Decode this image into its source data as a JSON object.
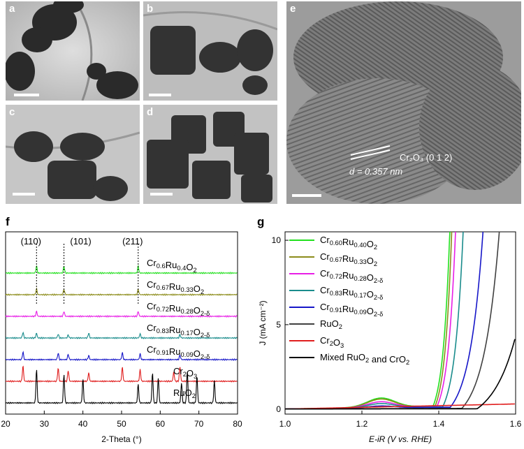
{
  "panels": {
    "a": {
      "label": "a"
    },
    "b": {
      "label": "b"
    },
    "c": {
      "label": "c"
    },
    "d": {
      "label": "d"
    },
    "e": {
      "label": "e"
    },
    "f": {
      "label": "f"
    },
    "g": {
      "label": "g"
    }
  },
  "hrtem": {
    "plane": "Cr₂O₃ (0 1 2)",
    "spacing": "d = 0.357 nm"
  },
  "colors": {
    "green": "#22e01e",
    "olive": "#8c8c1a",
    "magenta": "#e81ee6",
    "teal": "#1a8c8c",
    "blue": "#1616c8",
    "gray": "#404040",
    "red": "#e01e1e",
    "black": "#000000"
  },
  "chart_data": [
    {
      "type": "line",
      "panel": "f",
      "xlabel": "2-Theta (°)",
      "ylabel": "",
      "xlim": [
        20,
        80
      ],
      "xticks": [
        "20",
        "30",
        "40",
        "50",
        "60",
        "70",
        "80"
      ],
      "peak_labels": [
        "(110)",
        "(101)",
        "(211)"
      ],
      "peak_positions": [
        28.0,
        35.1,
        54.3
      ],
      "series": [
        {
          "name": "Cr0.6Ru0.4O2",
          "sub": "0.6",
          "sub2": "0.4",
          "sub3": "2",
          "color": "#22e01e",
          "peaks": [
            28.0,
            35.1,
            54.3
          ],
          "offset": 7
        },
        {
          "name": "Cr0.67Ru0.33O2",
          "color": "#8c8c1a",
          "peaks": [
            28.0,
            35.1,
            54.3
          ],
          "offset": 6
        },
        {
          "name": "Cr0.72Ru0.28O2-δ",
          "color": "#e81ee6",
          "peaks": [
            28.0,
            35.1,
            54.3
          ],
          "offset": 5
        },
        {
          "name": "Cr0.83Ru0.17O2-δ",
          "color": "#1a8c8c",
          "peaks": [
            24.5,
            28.0,
            33.6,
            36.2,
            41.5,
            54.8,
            65.1
          ],
          "offset": 4
        },
        {
          "name": "Cr0.91Ru0.09O2-δ",
          "color": "#1616c8",
          "peaks": [
            24.5,
            33.6,
            36.2,
            41.5,
            50.2,
            54.8,
            65.1
          ],
          "offset": 3
        },
        {
          "name": "Cr2O3",
          "color": "#e01e1e",
          "peaks": [
            24.5,
            33.6,
            36.2,
            41.5,
            50.2,
            54.8,
            63.5,
            65.1
          ],
          "offset": 2
        },
        {
          "name": "RuO2",
          "color": "#000000",
          "peaks": [
            28.0,
            35.1,
            40.0,
            54.3,
            58.0,
            59.5,
            65.5,
            67.0,
            69.5,
            74.0
          ],
          "offset": 1
        }
      ],
      "labels_text": [
        {
          "base": "Cr",
          "s1": "0.6",
          "m": "Ru",
          "s2": "0.4",
          "e": "O",
          "s3": "2"
        },
        {
          "base": "Cr",
          "s1": "0.67",
          "m": "Ru",
          "s2": "0.33",
          "e": "O",
          "s3": "2"
        },
        {
          "base": "Cr",
          "s1": "0.72",
          "m": "Ru",
          "s2": "0.28",
          "e": "O",
          "s3": "2-δ"
        },
        {
          "base": "Cr",
          "s1": "0.83",
          "m": "Ru",
          "s2": "0.17",
          "e": "O",
          "s3": "2-δ"
        },
        {
          "base": "Cr",
          "s1": "0.91",
          "m": "Ru",
          "s2": "0.09",
          "e": "O",
          "s3": "2-δ"
        },
        {
          "base": "Cr",
          "s1": "2",
          "m": "O",
          "s2": "3",
          "e": "",
          "s3": ""
        },
        {
          "base": "Ru",
          "s1": "",
          "m": "O",
          "s2": "2",
          "e": "",
          "s3": ""
        }
      ]
    },
    {
      "type": "line",
      "panel": "g",
      "xlabel": "E-iR (V vs. RHE)",
      "ylabel": "J (mA cm⁻²)",
      "xlim": [
        1.0,
        1.6
      ],
      "ylim": [
        -0.3,
        10.5
      ],
      "xticks": [
        "1.0",
        "1.2",
        "1.4",
        "1.6"
      ],
      "yticks": [
        "0",
        "5",
        "10"
      ],
      "legend": [
        {
          "text": "Cr0.60Ru0.40O2",
          "base": "Cr",
          "s1": "0.60",
          "m": "Ru",
          "s2": "0.40",
          "e": "O",
          "s3": "2",
          "color": "#22e01e"
        },
        {
          "text": "Cr0.67Ru0.33O2",
          "base": "Cr",
          "s1": "0.67",
          "m": "Ru",
          "s2": "0.33",
          "e": "O",
          "s3": "2",
          "color": "#8c8c1a"
        },
        {
          "text": "Cr0.72Ru0.28O2-δ",
          "base": "Cr",
          "s1": "0.72",
          "m": "Ru",
          "s2": "0.28",
          "e": "O",
          "s3": "2-δ",
          "color": "#e81ee6"
        },
        {
          "text": "Cr0.83Ru0.17O2-δ",
          "base": "Cr",
          "s1": "0.83",
          "m": "Ru",
          "s2": "0.17",
          "e": "O",
          "s3": "2-δ",
          "color": "#1a8c8c"
        },
        {
          "text": "Cr0.91Ru0.09O2-δ",
          "base": "Cr",
          "s1": "0.91",
          "m": "Ru",
          "s2": "0.09",
          "e": "O",
          "s3": "2-δ",
          "color": "#1616c8"
        },
        {
          "text": "RuO2",
          "base": "Ru",
          "s1": "",
          "m": "O",
          "s2": "2",
          "e": "",
          "s3": "",
          "color": "#404040"
        },
        {
          "text": "Cr2O3",
          "base": "Cr",
          "s1": "2",
          "m": "O",
          "s2": "3",
          "e": "",
          "s3": "",
          "color": "#e01e1e"
        },
        {
          "text": "Mixed RuO2 and CrO2",
          "base": "Mixed Ru",
          "s1": "",
          "m": "O",
          "s2": "2",
          "e": " and CrO",
          "s3": "2",
          "color": "#000000"
        }
      ],
      "series": [
        {
          "name": "Cr0.60Ru0.40O2",
          "color": "#22e01e",
          "onset": 1.385,
          "k": 0.018,
          "bump": 0.55,
          "base": 0.25
        },
        {
          "name": "Cr0.67Ru0.33O2",
          "color": "#8c8c1a",
          "onset": 1.39,
          "k": 0.018,
          "bump": 0.5,
          "base": 0.22
        },
        {
          "name": "Cr0.72Ru0.28O2-δ",
          "color": "#e81ee6",
          "onset": 1.395,
          "k": 0.02,
          "bump": 0.35,
          "base": 0.2
        },
        {
          "name": "Cr0.83Ru0.17O2-δ",
          "color": "#1a8c8c",
          "onset": 1.41,
          "k": 0.022,
          "bump": 0.25,
          "base": 0.18
        },
        {
          "name": "Cr0.91Ru0.09O2-δ",
          "color": "#1616c8",
          "onset": 1.43,
          "k": 0.035,
          "bump": 0.12,
          "base": 0.15
        },
        {
          "name": "RuO2",
          "color": "#404040",
          "onset": 1.46,
          "k": 0.04,
          "bump": 0.0,
          "base": 0.05
        },
        {
          "name": "Cr2O3",
          "color": "#e01e1e",
          "onset": 9.9,
          "k": 1.0,
          "bump": 0.0,
          "base": 0.0
        },
        {
          "name": "Mixed RuO2 and CrO2",
          "color": "#000000",
          "onset": 1.5,
          "k": 0.06,
          "bump": 0.0,
          "base": 0.02
        }
      ]
    }
  ]
}
